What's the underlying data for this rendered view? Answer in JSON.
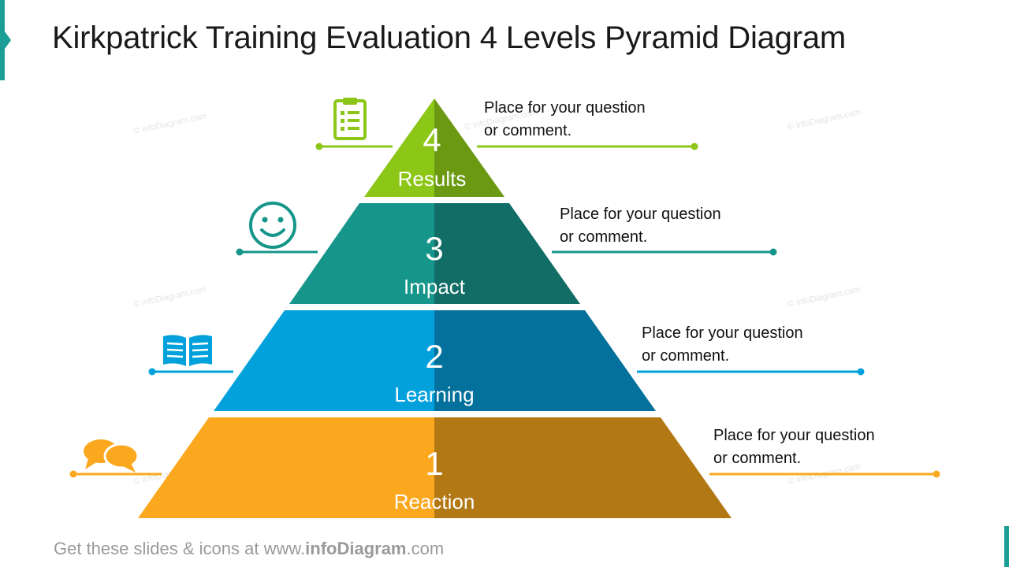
{
  "slide": {
    "title": "Kirkpatrick Training Evaluation 4 Levels Pyramid Diagram",
    "footer": {
      "prefix": "Get these slides & icons at www.",
      "brand": "infoDiagram",
      "suffix": ".com"
    }
  },
  "watermark": "© infoDiagram.com",
  "levels": [
    {
      "number": "4",
      "name": "Results",
      "comment": "Place for your question\nor comment.",
      "icon": "clipboard-icon",
      "color_light": "#8cc616",
      "color_dark": "#6b9a12"
    },
    {
      "number": "3",
      "name": "Impact",
      "comment": "Place for your question\nor comment.",
      "icon": "smiley-icon",
      "color_light": "#16968b",
      "color_dark": "#116d66"
    },
    {
      "number": "2",
      "name": "Learning",
      "comment": "Place for your question\nor comment.",
      "icon": "open-book-icon",
      "color_light": "#02a1dc",
      "color_dark": "#03719b"
    },
    {
      "number": "1",
      "name": "Reaction",
      "comment": "Place for your question\nor comment.",
      "icon": "speech-bubbles-icon",
      "color_light": "#fca81e",
      "color_dark": "#b17813"
    }
  ]
}
